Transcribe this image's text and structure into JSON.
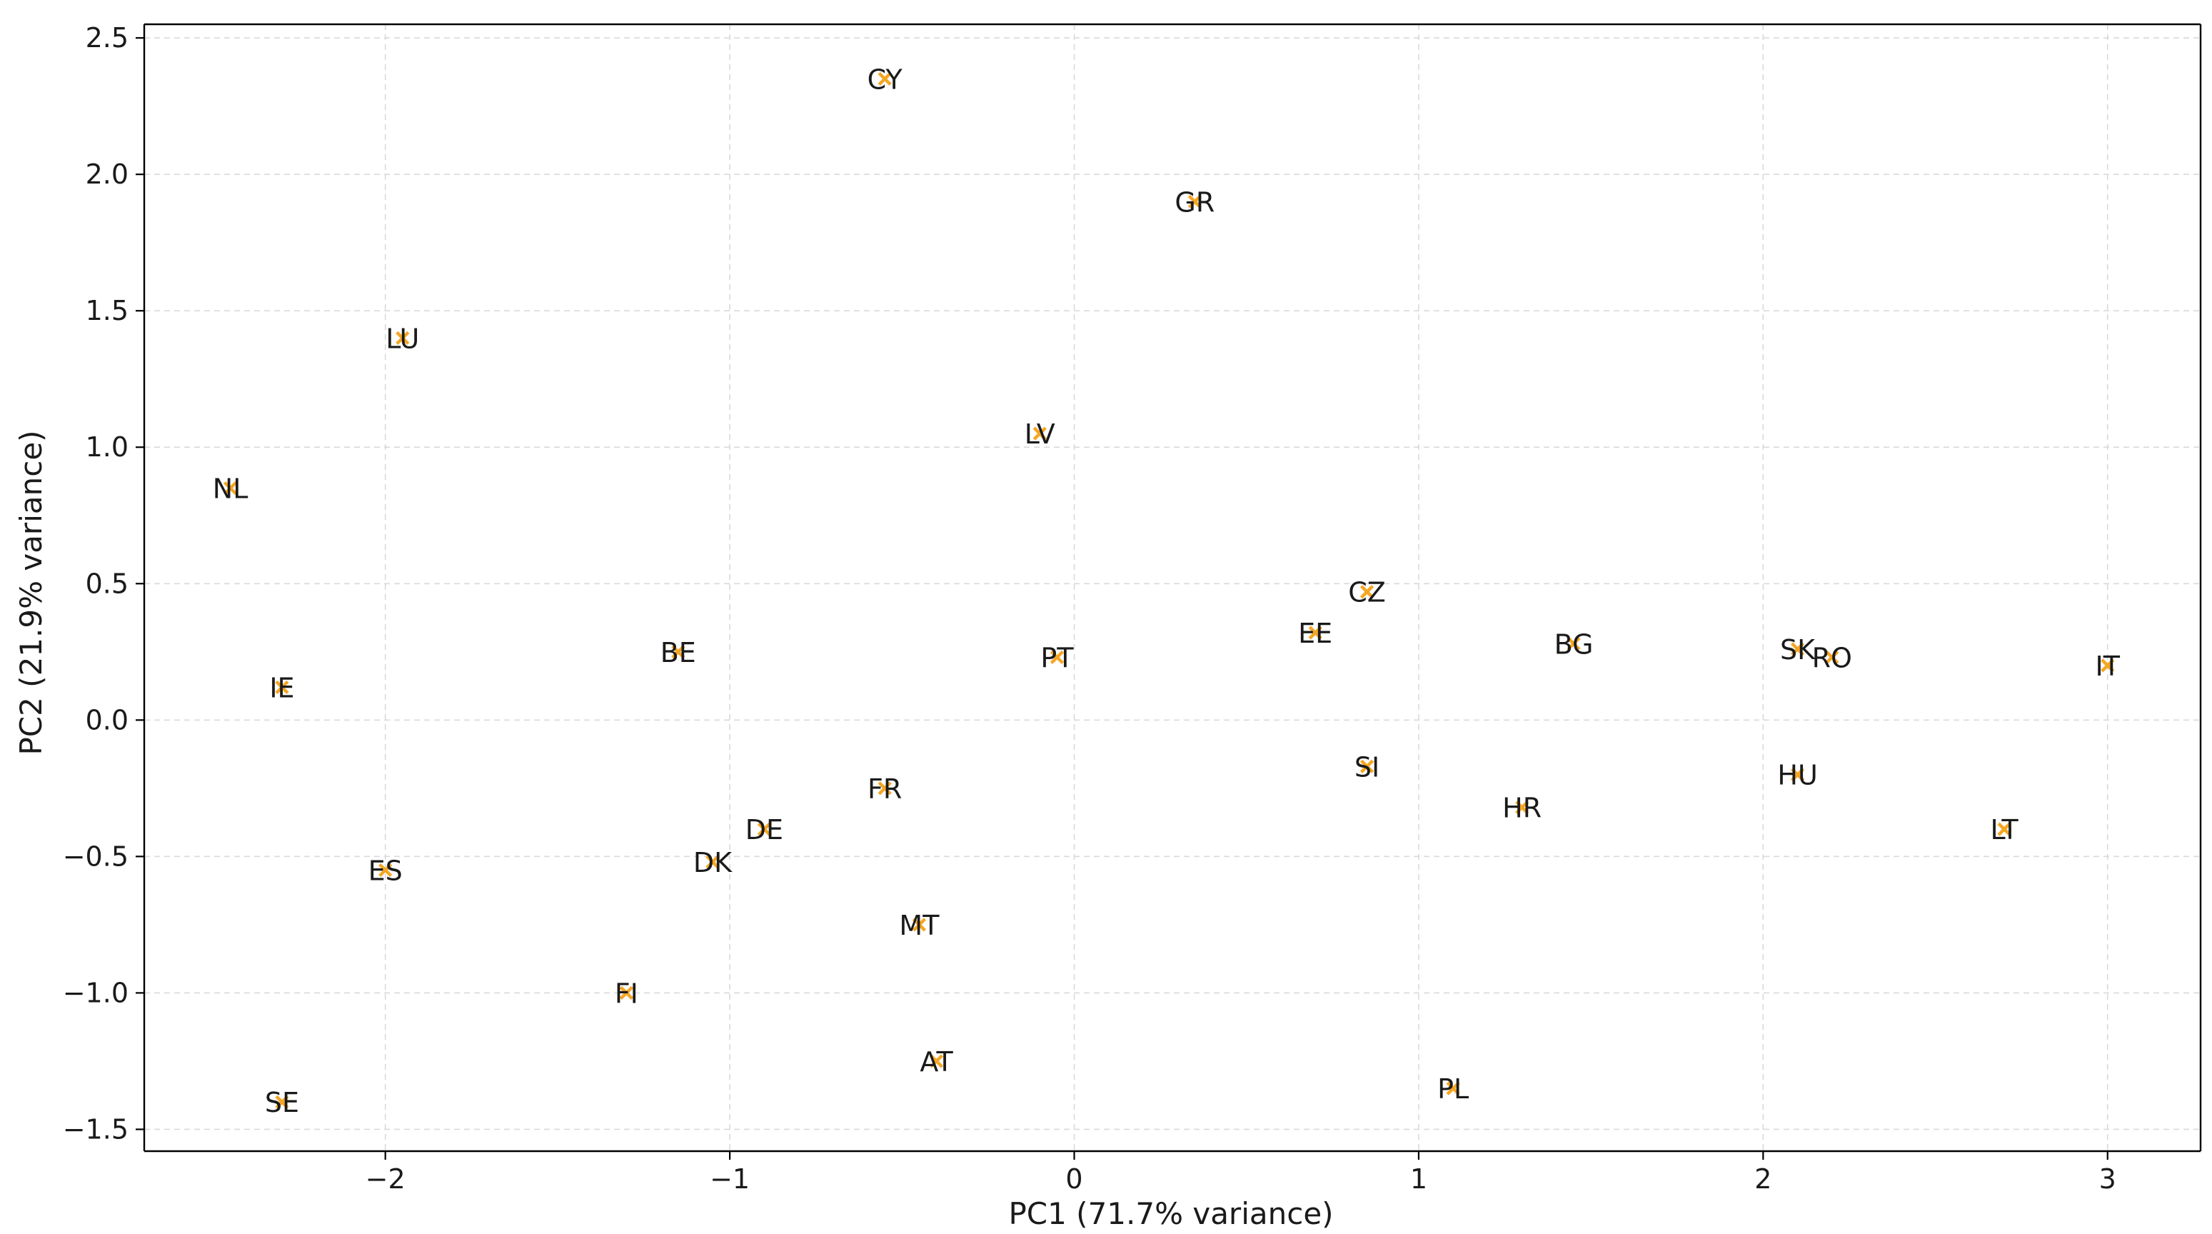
{
  "chart_data": {
    "type": "scatter",
    "xlabel": "PC1 (71.7% variance)",
    "ylabel": "PC2 (21.9% variance)",
    "xlim": [
      -2.7,
      3.27
    ],
    "ylim": [
      -1.58,
      2.55
    ],
    "xticks": [
      -2,
      -1,
      0,
      1,
      2,
      3
    ],
    "xtick_labels": [
      "−2",
      "−1",
      "0",
      "1",
      "2",
      "3"
    ],
    "yticks": [
      -1.5,
      -1.0,
      -0.5,
      0.0,
      0.5,
      1.0,
      1.5,
      2.0,
      2.5
    ],
    "ytick_labels": [
      "−1.5",
      "−1.0",
      "−0.5",
      "0.0",
      "0.5",
      "1.0",
      "1.5",
      "2.0",
      "2.5"
    ],
    "grid": true,
    "marker_color": "#f5a623",
    "marker": "x",
    "points": [
      {
        "label": "CY",
        "x": -0.55,
        "y": 2.35
      },
      {
        "label": "GR",
        "x": 0.35,
        "y": 1.9
      },
      {
        "label": "LU",
        "x": -1.95,
        "y": 1.4
      },
      {
        "label": "LV",
        "x": -0.1,
        "y": 1.05
      },
      {
        "label": "NL",
        "x": -2.45,
        "y": 0.85
      },
      {
        "label": "CZ",
        "x": 0.85,
        "y": 0.47
      },
      {
        "label": "EE",
        "x": 0.7,
        "y": 0.32
      },
      {
        "label": "BE",
        "x": -1.15,
        "y": 0.25
      },
      {
        "label": "PT",
        "x": -0.05,
        "y": 0.23
      },
      {
        "label": "BG",
        "x": 1.45,
        "y": 0.28
      },
      {
        "label": "SK",
        "x": 2.1,
        "y": 0.26
      },
      {
        "label": "RO",
        "x": 2.2,
        "y": 0.23
      },
      {
        "label": "IT",
        "x": 3.0,
        "y": 0.2
      },
      {
        "label": "IE",
        "x": -2.3,
        "y": 0.12
      },
      {
        "label": "SI",
        "x": 0.85,
        "y": -0.17
      },
      {
        "label": "HU",
        "x": 2.1,
        "y": -0.2
      },
      {
        "label": "FR",
        "x": -0.55,
        "y": -0.25
      },
      {
        "label": "HR",
        "x": 1.3,
        "y": -0.32
      },
      {
        "label": "DE",
        "x": -0.9,
        "y": -0.4
      },
      {
        "label": "LT",
        "x": 2.7,
        "y": -0.4
      },
      {
        "label": "ES",
        "x": -2.0,
        "y": -0.55
      },
      {
        "label": "DK",
        "x": -1.05,
        "y": -0.52
      },
      {
        "label": "MT",
        "x": -0.45,
        "y": -0.75
      },
      {
        "label": "FI",
        "x": -1.3,
        "y": -1.0
      },
      {
        "label": "AT",
        "x": -0.4,
        "y": -1.25
      },
      {
        "label": "PL",
        "x": 1.1,
        "y": -1.35
      },
      {
        "label": "SE",
        "x": -2.3,
        "y": -1.4
      }
    ]
  }
}
